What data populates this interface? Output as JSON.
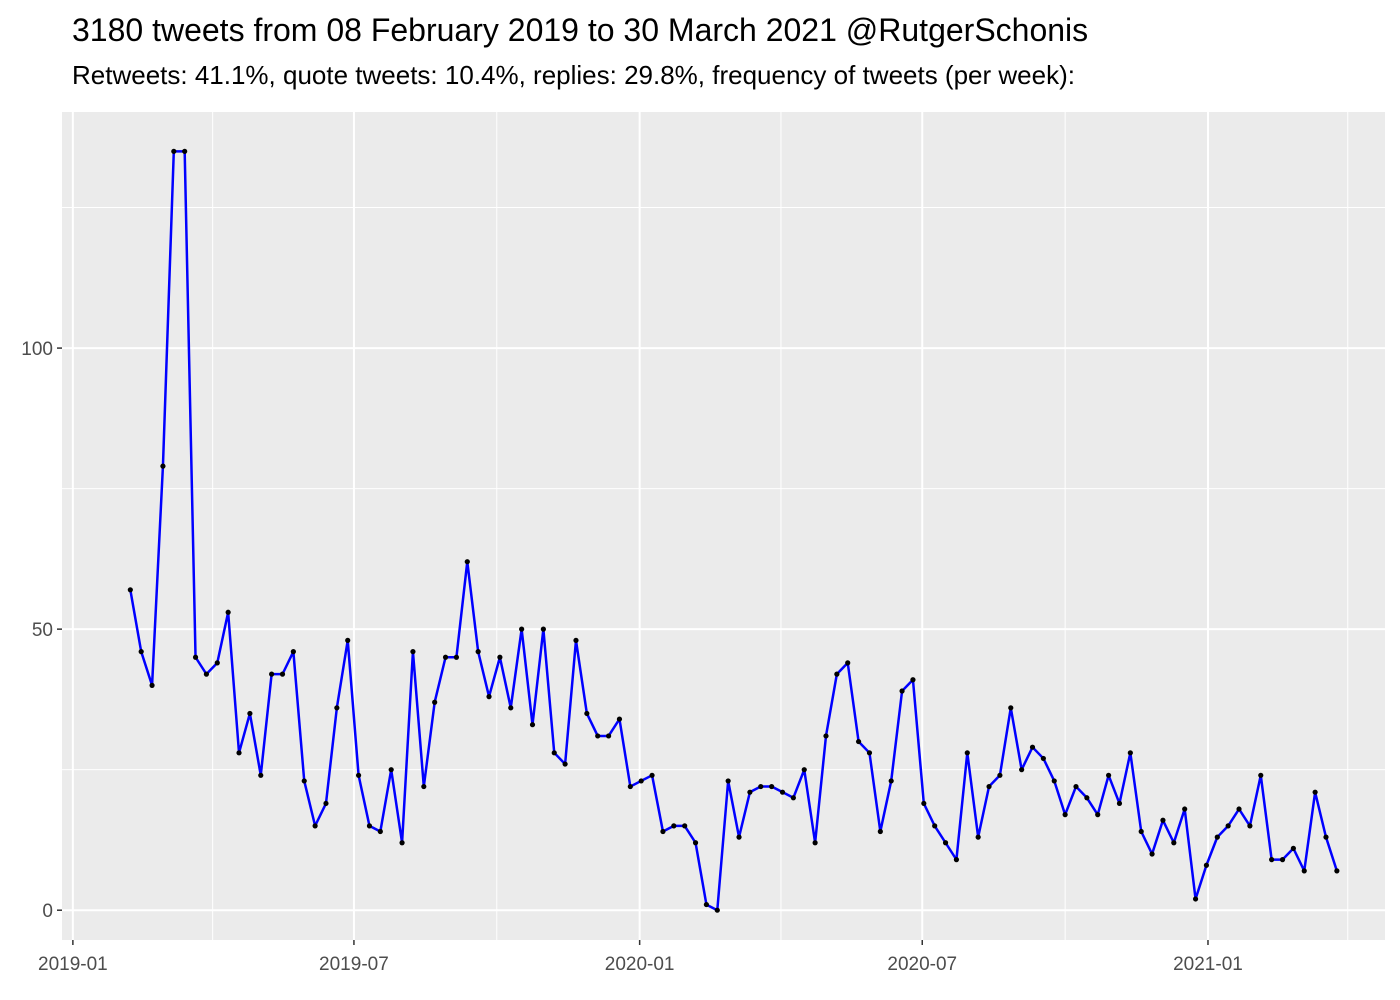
{
  "chart_data": {
    "type": "line",
    "title": "3180 tweets from 08 February 2019 to 30 March 2021 @RutgerSchonis",
    "subtitle": "Retweets: 41.1%, quote tweets: 10.4%, replies: 29.8%, frequency of tweets (per week):",
    "xlabel": "",
    "ylabel": "",
    "x_ticks": [
      "2019-01",
      "2019-07",
      "2020-01",
      "2020-07",
      "2021-01"
    ],
    "y_ticks": [
      0,
      50,
      100
    ],
    "xlim": [
      "2018-12-25",
      "2021-04-25"
    ],
    "ylim": [
      -5.3,
      142
    ],
    "grid": true,
    "line_color": "#0000FF",
    "point_color": "#000000",
    "panel_background": "#EBEBEB",
    "x": [
      "2019-02-07",
      "2019-02-14",
      "2019-02-21",
      "2019-02-28",
      "2019-03-07",
      "2019-03-14",
      "2019-03-21",
      "2019-03-28",
      "2019-04-04",
      "2019-04-11",
      "2019-04-18",
      "2019-04-25",
      "2019-05-02",
      "2019-05-09",
      "2019-05-16",
      "2019-05-23",
      "2019-05-30",
      "2019-06-06",
      "2019-06-13",
      "2019-06-20",
      "2019-06-27",
      "2019-07-04",
      "2019-07-11",
      "2019-07-18",
      "2019-07-25",
      "2019-08-01",
      "2019-08-08",
      "2019-08-15",
      "2019-08-22",
      "2019-08-29",
      "2019-09-05",
      "2019-09-12",
      "2019-09-19",
      "2019-09-26",
      "2019-10-03",
      "2019-10-10",
      "2019-10-17",
      "2019-10-24",
      "2019-10-31",
      "2019-11-07",
      "2019-11-14",
      "2019-11-21",
      "2019-11-28",
      "2019-12-05",
      "2019-12-12",
      "2019-12-19",
      "2019-12-26",
      "2020-01-02",
      "2020-01-09",
      "2020-01-16",
      "2020-01-23",
      "2020-01-30",
      "2020-02-06",
      "2020-02-13",
      "2020-02-20",
      "2020-02-27",
      "2020-03-05",
      "2020-03-12",
      "2020-03-19",
      "2020-03-26",
      "2020-04-02",
      "2020-04-09",
      "2020-04-16",
      "2020-04-23",
      "2020-04-30",
      "2020-05-07",
      "2020-05-14",
      "2020-05-21",
      "2020-05-28",
      "2020-06-04",
      "2020-06-11",
      "2020-06-18",
      "2020-06-25",
      "2020-07-02",
      "2020-07-09",
      "2020-07-16",
      "2020-07-23",
      "2020-07-30",
      "2020-08-06",
      "2020-08-13",
      "2020-08-20",
      "2020-08-27",
      "2020-09-03",
      "2020-09-10",
      "2020-09-17",
      "2020-09-24",
      "2020-10-01",
      "2020-10-08",
      "2020-10-15",
      "2020-10-22",
      "2020-10-29",
      "2020-11-05",
      "2020-11-12",
      "2020-11-19",
      "2020-11-26",
      "2020-12-03",
      "2020-12-10",
      "2020-12-17",
      "2020-12-24",
      "2020-12-31",
      "2021-01-07",
      "2021-01-14",
      "2021-01-21",
      "2021-01-28",
      "2021-02-04",
      "2021-02-11",
      "2021-02-18",
      "2021-02-25",
      "2021-03-04",
      "2021-03-11",
      "2021-03-18",
      "2021-03-25"
    ],
    "values": [
      57,
      46,
      40,
      79,
      135,
      135,
      45,
      42,
      44,
      53,
      28,
      35,
      24,
      42,
      42,
      46,
      23,
      15,
      19,
      36,
      48,
      24,
      15,
      14,
      25,
      12,
      46,
      22,
      37,
      45,
      45,
      62,
      46,
      38,
      45,
      36,
      50,
      33,
      50,
      28,
      26,
      48,
      35,
      31,
      31,
      34,
      22,
      23,
      24,
      14,
      15,
      15,
      12,
      1,
      0,
      23,
      13,
      21,
      22,
      22,
      21,
      20,
      25,
      12,
      31,
      42,
      44,
      30,
      28,
      14,
      23,
      39,
      41,
      19,
      15,
      12,
      9,
      28,
      13,
      22,
      24,
      36,
      25,
      29,
      27,
      23,
      17,
      22,
      20,
      17,
      24,
      19,
      28,
      14,
      10,
      16,
      12,
      18,
      2,
      8,
      13,
      15,
      18,
      15,
      24,
      9,
      9,
      11,
      7,
      21,
      13,
      7
    ]
  }
}
